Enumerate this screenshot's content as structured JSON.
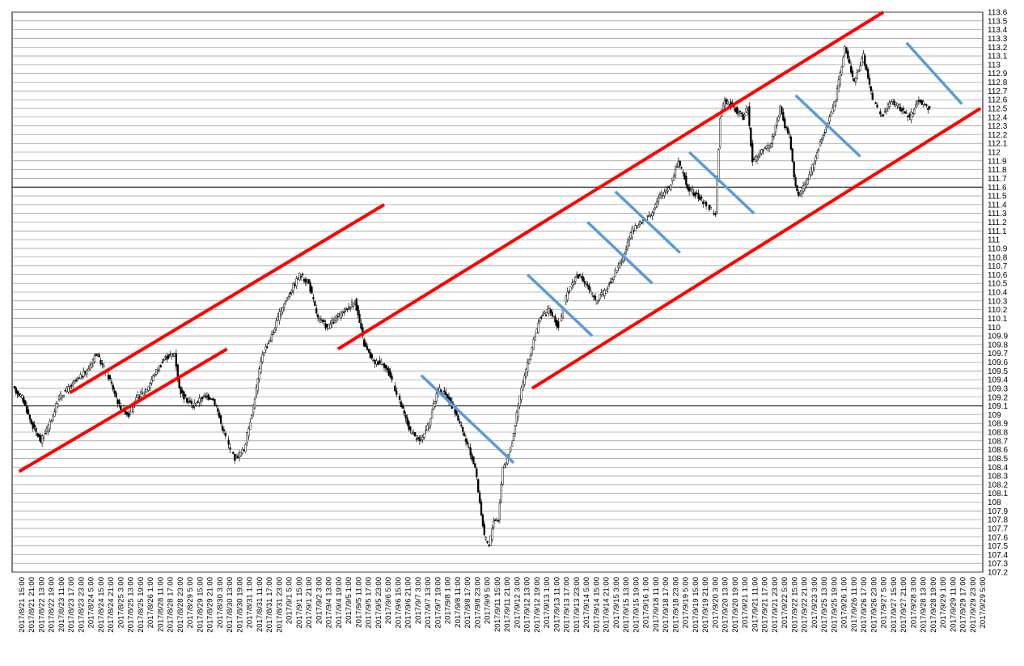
{
  "chart_data": {
    "type": "candlestick",
    "title": "",
    "xlabel": "",
    "ylabel": "",
    "ylim": [
      107.2,
      113.6
    ],
    "grid": true,
    "y_ticks": [
      "107.2",
      "107.3",
      "107.4",
      "107.5",
      "107.6",
      "107.7",
      "107.8",
      "107.9",
      "108",
      "108.1",
      "108.2",
      "108.3",
      "108.4",
      "108.5",
      "108.6",
      "108.7",
      "108.8",
      "108.9",
      "109",
      "109.1",
      "109.2",
      "109.3",
      "109.4",
      "109.5",
      "109.6",
      "109.7",
      "109.8",
      "109.9",
      "110",
      "110.1",
      "110.2",
      "110.3",
      "110.4",
      "110.5",
      "110.6",
      "110.7",
      "110.8",
      "110.9",
      "111",
      "111.1",
      "111.2",
      "111.3",
      "111.4",
      "111.5",
      "111.6",
      "111.7",
      "111.8",
      "111.9",
      "112",
      "112.1",
      "112.2",
      "112.3",
      "112.4",
      "112.5",
      "112.6",
      "112.7",
      "112.8",
      "112.9",
      "113",
      "113.1",
      "113.2",
      "113.3",
      "113.4",
      "113.5",
      "113.6"
    ],
    "emphasized_levels": [
      109.1,
      111.6
    ],
    "x_ticks": [
      "2017/8/21 15:00",
      "2017/8/21 21:00",
      "2017/8/22 13:00",
      "2017/8/22 19:00",
      "2017/8/23 11:00",
      "2017/8/23 17:00",
      "2017/8/23 23:00",
      "2017/8/24 5:00",
      "2017/8/24 15:00",
      "2017/8/24 21:00",
      "2017/8/25 3:00",
      "2017/8/25 13:00",
      "2017/8/25 19:00",
      "2017/8/26 1:00",
      "2017/8/28 11:00",
      "2017/8/28 17:00",
      "2017/8/28 23:00",
      "2017/8/29 5:00",
      "2017/8/29 15:00",
      "2017/8/29 21:00",
      "2017/8/30 3:00",
      "2017/8/30 13:00",
      "2017/8/30 19:00",
      "2017/8/31 1:00",
      "2017/8/31 11:00",
      "2017/8/31 17:00",
      "2017/8/31 23:00",
      "2017/9/1 5:00",
      "2017/9/1 15:00",
      "2017/9/1 21:00",
      "2017/9/2 3:00",
      "2017/9/4 13:00",
      "2017/9/4 19:00",
      "2017/9/5 1:00",
      "2017/9/5 11:00",
      "2017/9/5 17:00",
      "2017/9/5 23:00",
      "2017/9/6 5:00",
      "2017/9/6 15:00",
      "2017/9/6 21:00",
      "2017/9/7 3:00",
      "2017/9/7 13:00",
      "2017/9/7 19:00",
      "2017/9/8 1:00",
      "2017/9/8 11:00",
      "2017/9/8 17:00",
      "2017/9/8 23:00",
      "2017/9/9 5:00",
      "2017/9/11 15:00",
      "2017/9/11 21:00",
      "2017/9/12 3:00",
      "2017/9/12 13:00",
      "2017/9/12 19:00",
      "2017/9/13 1:00",
      "2017/9/13 11:00",
      "2017/9/13 17:00",
      "2017/9/13 23:00",
      "2017/9/14 5:00",
      "2017/9/14 15:00",
      "2017/9/14 21:00",
      "2017/9/15 3:00",
      "2017/9/15 13:00",
      "2017/9/15 19:00",
      "2017/9/16 1:00",
      "2017/9/18 11:00",
      "2017/9/18 17:00",
      "2017/9/18 23:00",
      "2017/9/19 5:00",
      "2017/9/19 15:00",
      "2017/9/19 21:00",
      "2017/9/20 3:00",
      "2017/9/20 13:00",
      "2017/9/20 19:00",
      "2017/9/21 1:00",
      "2017/9/21 11:00",
      "2017/9/21 17:00",
      "2017/9/21 23:00",
      "2017/9/22 5:00",
      "2017/9/22 15:00",
      "2017/9/22 21:00",
      "2017/9/23 3:00",
      "2017/9/25 13:00",
      "2017/9/25 19:00",
      "2017/9/26 1:00",
      "2017/9/26 11:00",
      "2017/9/26 17:00",
      "2017/9/26 23:00",
      "2017/9/27 5:00",
      "2017/9/27 15:00",
      "2017/9/27 21:00",
      "2017/9/28 3:00",
      "2017/9/28 13:00",
      "2017/9/28 19:00",
      "2017/9/29 1:00",
      "2017/9/29 11:00",
      "2017/9/29 17:00",
      "2017/9/29 23:00",
      "2017/9/29 5:00"
    ],
    "price_path": [
      [
        0,
        109.3
      ],
      [
        2,
        109.2
      ],
      [
        4,
        108.9
      ],
      [
        6,
        108.7
      ],
      [
        8,
        108.9
      ],
      [
        10,
        109.2
      ],
      [
        12,
        109.3
      ],
      [
        14,
        109.4
      ],
      [
        16,
        109.5
      ],
      [
        18,
        109.7
      ],
      [
        20,
        109.5
      ],
      [
        21,
        109.4
      ],
      [
        23,
        109.1
      ],
      [
        25,
        109.0
      ],
      [
        27,
        109.2
      ],
      [
        29,
        109.3
      ],
      [
        31,
        109.5
      ],
      [
        33,
        109.65
      ],
      [
        35,
        109.7
      ],
      [
        36,
        109.3
      ],
      [
        37,
        109.2
      ],
      [
        39,
        109.1
      ],
      [
        41,
        109.2
      ],
      [
        43,
        109.2
      ],
      [
        44,
        109.1
      ],
      [
        45,
        108.9
      ],
      [
        47,
        108.6
      ],
      [
        48,
        108.5
      ],
      [
        50,
        108.6
      ],
      [
        52,
        109.1
      ],
      [
        54,
        109.7
      ],
      [
        56,
        109.9
      ],
      [
        58,
        110.2
      ],
      [
        60,
        110.4
      ],
      [
        62,
        110.6
      ],
      [
        64,
        110.5
      ],
      [
        66,
        110.1
      ],
      [
        68,
        110.0
      ],
      [
        70,
        110.1
      ],
      [
        72,
        110.2
      ],
      [
        74,
        110.3
      ],
      [
        76,
        109.8
      ],
      [
        78,
        109.6
      ],
      [
        80,
        109.6
      ],
      [
        82,
        109.4
      ],
      [
        84,
        109.1
      ],
      [
        86,
        108.8
      ],
      [
        88,
        108.7
      ],
      [
        90,
        108.9
      ],
      [
        92,
        109.3
      ],
      [
        94,
        109.2
      ],
      [
        96,
        109.0
      ],
      [
        98,
        108.7
      ],
      [
        100,
        108.4
      ],
      [
        101,
        108.0
      ],
      [
        102,
        107.6
      ],
      [
        103,
        107.5
      ],
      [
        104,
        107.8
      ],
      [
        105,
        107.8
      ],
      [
        106,
        108.4
      ],
      [
        107,
        108.5
      ],
      [
        108,
        108.7
      ],
      [
        110,
        109.3
      ],
      [
        112,
        109.7
      ],
      [
        114,
        110.1
      ],
      [
        116,
        110.2
      ],
      [
        118,
        110.0
      ],
      [
        120,
        110.4
      ],
      [
        122,
        110.6
      ],
      [
        124,
        110.5
      ],
      [
        126,
        110.3
      ],
      [
        128,
        110.4
      ],
      [
        130,
        110.6
      ],
      [
        132,
        110.8
      ],
      [
        134,
        111.1
      ],
      [
        136,
        111.2
      ],
      [
        138,
        111.3
      ],
      [
        140,
        111.5
      ],
      [
        142,
        111.6
      ],
      [
        144,
        111.9
      ],
      [
        146,
        111.6
      ],
      [
        148,
        111.5
      ],
      [
        150,
        111.4
      ],
      [
        152,
        111.3
      ],
      [
        153,
        112.4
      ],
      [
        154,
        112.6
      ],
      [
        156,
        112.5
      ],
      [
        158,
        112.4
      ],
      [
        159,
        112.5
      ],
      [
        160,
        111.9
      ],
      [
        162,
        112.0
      ],
      [
        164,
        112.1
      ],
      [
        166,
        112.5
      ],
      [
        167,
        112.3
      ],
      [
        168,
        112.2
      ],
      [
        169,
        111.7
      ],
      [
        170,
        111.5
      ],
      [
        172,
        111.7
      ],
      [
        174,
        112.0
      ],
      [
        176,
        112.3
      ],
      [
        178,
        112.6
      ],
      [
        180,
        113.2
      ],
      [
        182,
        112.8
      ],
      [
        184,
        113.1
      ],
      [
        186,
        112.6
      ],
      [
        188,
        112.4
      ],
      [
        190,
        112.6
      ],
      [
        192,
        112.5
      ],
      [
        194,
        112.4
      ],
      [
        196,
        112.6
      ],
      [
        198,
        112.5
      ]
    ],
    "trend_lines": [
      {
        "color": "#ff0000",
        "from": [
          1,
          108.35
        ],
        "to": [
          46,
          109.75
        ]
      },
      {
        "color": "#ff0000",
        "from": [
          12,
          109.25
        ],
        "to": [
          80,
          111.4
        ]
      },
      {
        "color": "#ff0000",
        "from": [
          70,
          109.75
        ],
        "to": [
          188,
          113.6
        ]
      },
      {
        "color": "#ff0000",
        "from": [
          112,
          109.3
        ],
        "to": [
          209,
          112.5
        ]
      },
      {
        "color": "#5b9bd5",
        "from": [
          88,
          109.45
        ],
        "to": [
          108,
          108.45
        ]
      },
      {
        "color": "#5b9bd5",
        "from": [
          111,
          110.6
        ],
        "to": [
          125,
          109.9
        ]
      },
      {
        "color": "#5b9bd5",
        "from": [
          124,
          111.2
        ],
        "to": [
          138,
          110.5
        ]
      },
      {
        "color": "#5b9bd5",
        "from": [
          130,
          111.55
        ],
        "to": [
          144,
          110.85
        ]
      },
      {
        "color": "#5b9bd5",
        "from": [
          146,
          112.0
        ],
        "to": [
          160,
          111.3
        ]
      },
      {
        "color": "#5b9bd5",
        "from": [
          169,
          112.65
        ],
        "to": [
          183,
          111.95
        ]
      },
      {
        "color": "#5b9bd5",
        "from": [
          193,
          113.25
        ],
        "to": [
          205,
          112.55
        ]
      }
    ],
    "colors": {
      "candle": "#000000",
      "grid": "#c8c8c8",
      "emphasis_grid": "#000000",
      "channel": "#ff0000",
      "short_trend": "#5b9bd5"
    }
  }
}
